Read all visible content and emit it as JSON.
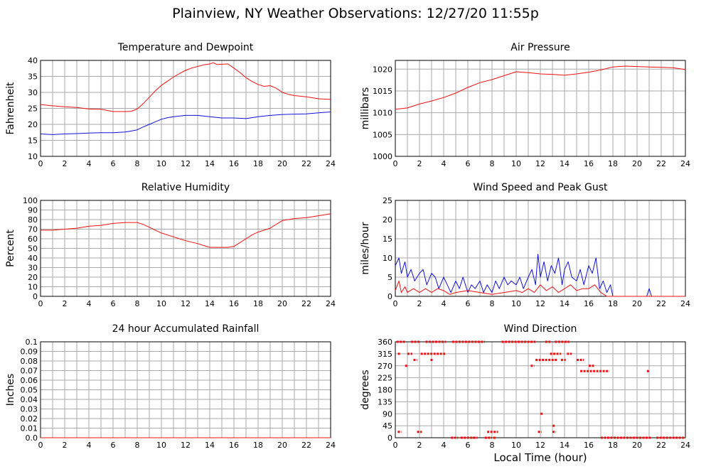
{
  "title": "Plainview, NY Weather Observations: 12/27/20 11:55p",
  "x_axis_label": "Local Time (hour)",
  "colors": {
    "red": "#ee1111",
    "blue": "#1111dd",
    "grid": "#aaaaaa"
  },
  "chart_data": [
    {
      "id": "temp",
      "type": "line",
      "title": "Temperature and Dewpoint",
      "ylabel": "Fahrenheit",
      "xlim": [
        0,
        24
      ],
      "ylim": [
        10,
        40
      ],
      "yticks": [
        "10",
        "15",
        "20",
        "25",
        "30",
        "35",
        "40"
      ],
      "xticks": [
        "0",
        "2",
        "4",
        "6",
        "8",
        "10",
        "12",
        "14",
        "16",
        "18",
        "20",
        "22",
        "24"
      ],
      "grid": true,
      "series": [
        {
          "color": "red",
          "x": [
            0,
            1,
            2,
            3,
            4,
            5,
            6,
            7,
            7.5,
            8,
            8.5,
            9,
            9.5,
            10,
            10.5,
            11,
            11.5,
            12,
            12.5,
            13,
            13.5,
            14,
            14.3,
            14.6,
            15,
            15.5,
            16,
            16.5,
            17,
            17.5,
            18,
            18.5,
            19,
            19.5,
            20,
            20.5,
            21,
            22,
            23,
            24
          ],
          "y": [
            26.2,
            25.8,
            25.5,
            25.3,
            24.8,
            24.7,
            24.0,
            24.0,
            24.1,
            24.8,
            26.5,
            28.5,
            30.5,
            32.2,
            33.5,
            34.8,
            35.9,
            36.9,
            37.6,
            38.1,
            38.6,
            38.9,
            39.3,
            38.7,
            38.8,
            38.9,
            37.6,
            36.2,
            34.6,
            33.4,
            32.5,
            31.9,
            32.1,
            31.3,
            30.0,
            29.4,
            29.0,
            28.6,
            28.0,
            27.8
          ]
        },
        {
          "color": "blue",
          "x": [
            0,
            1,
            2,
            3,
            4,
            5,
            6,
            7,
            7.5,
            8,
            8.5,
            9,
            9.5,
            10,
            10.5,
            11,
            12,
            13,
            14,
            15,
            16,
            17,
            18,
            19,
            20,
            21,
            22,
            23,
            24
          ],
          "y": [
            17.0,
            16.8,
            17.0,
            17.1,
            17.3,
            17.4,
            17.4,
            17.6,
            17.9,
            18.3,
            19.2,
            20.0,
            20.8,
            21.6,
            22.1,
            22.4,
            22.8,
            22.8,
            22.4,
            22.0,
            22.0,
            21.8,
            22.4,
            22.8,
            23.1,
            23.2,
            23.3,
            23.6,
            23.9
          ]
        }
      ]
    },
    {
      "id": "pressure",
      "type": "line",
      "title": "Air Pressure",
      "ylabel": "millibars",
      "xlim": [
        0,
        24
      ],
      "ylim": [
        1000,
        1022
      ],
      "yticks": [
        "1000",
        "1005",
        "1010",
        "1015",
        "1020"
      ],
      "xticks": [
        "0",
        "2",
        "4",
        "6",
        "8",
        "10",
        "12",
        "14",
        "16",
        "18",
        "20",
        "22",
        "24"
      ],
      "grid": true,
      "series": [
        {
          "color": "red",
          "x": [
            0,
            1,
            2,
            3,
            4,
            5,
            6,
            7,
            8,
            9,
            10,
            11,
            12,
            13,
            14,
            15,
            16,
            17,
            18,
            19,
            20,
            21,
            22,
            23,
            24
          ],
          "y": [
            1010.8,
            1011.1,
            1012.0,
            1012.7,
            1013.5,
            1014.5,
            1015.8,
            1016.9,
            1017.6,
            1018.5,
            1019.4,
            1019.2,
            1018.9,
            1018.8,
            1018.6,
            1018.9,
            1019.3,
            1019.8,
            1020.5,
            1020.7,
            1020.6,
            1020.5,
            1020.4,
            1020.3,
            1019.9
          ]
        }
      ]
    },
    {
      "id": "humidity",
      "type": "line",
      "title": "Relative Humidity",
      "ylabel": "Percent",
      "xlim": [
        0,
        24
      ],
      "ylim": [
        0,
        100
      ],
      "yticks": [
        "0",
        "10",
        "20",
        "30",
        "40",
        "50",
        "60",
        "70",
        "80",
        "90",
        "100"
      ],
      "xticks": [
        "0",
        "2",
        "4",
        "6",
        "8",
        "10",
        "12",
        "14",
        "16",
        "18",
        "20",
        "22",
        "24"
      ],
      "grid": true,
      "series": [
        {
          "color": "red",
          "x": [
            0,
            1,
            2,
            3,
            4,
            5,
            6,
            7,
            8,
            8.5,
            9,
            9.5,
            10,
            11,
            12,
            13,
            14,
            15,
            15.5,
            16,
            16.5,
            17,
            17.5,
            18,
            18.5,
            19,
            20,
            21,
            22,
            23,
            24
          ],
          "y": [
            69,
            69,
            70,
            71,
            73,
            74,
            76,
            77,
            77,
            75,
            72,
            69,
            66,
            62,
            58,
            55,
            51,
            51,
            51,
            52,
            56,
            60,
            64,
            67,
            69,
            71,
            79,
            81,
            82,
            84,
            86
          ]
        }
      ]
    },
    {
      "id": "wind",
      "type": "line",
      "title": "Wind Speed and Peak Gust",
      "ylabel": "miles/hour",
      "xlim": [
        0,
        24
      ],
      "ylim": [
        0,
        25
      ],
      "yticks": [
        "0",
        "5",
        "10",
        "15",
        "20",
        "25"
      ],
      "xticks": [
        "0",
        "2",
        "4",
        "6",
        "8",
        "10",
        "12",
        "14",
        "16",
        "18",
        "20",
        "22",
        "24"
      ],
      "grid": true,
      "series": [
        {
          "color": "blue",
          "x": [
            0,
            0.3,
            0.5,
            0.8,
            1,
            1.3,
            1.6,
            2,
            2.3,
            2.6,
            3,
            3.3,
            3.6,
            4,
            4.3,
            4.6,
            5,
            5.3,
            5.6,
            6,
            6.3,
            6.6,
            7,
            7.3,
            7.6,
            8,
            8.3,
            8.6,
            9,
            9.3,
            9.6,
            10,
            10.3,
            10.6,
            11,
            11.3,
            11.6,
            11.8,
            12,
            12.3,
            12.6,
            12.9,
            13.2,
            13.5,
            13.8,
            14,
            14.3,
            14.6,
            15,
            15.3,
            15.6,
            16,
            16.3,
            16.6,
            16.9,
            17.2,
            17.5,
            17.8,
            18,
            20.8,
            21,
            21.2,
            24
          ],
          "y": [
            8,
            10,
            6,
            9,
            5,
            7,
            4,
            6,
            7,
            3,
            6,
            5,
            2,
            5,
            3,
            1,
            4,
            2,
            5,
            1,
            3,
            2,
            4,
            1,
            3,
            1,
            4,
            2,
            5,
            3,
            4,
            3,
            5,
            2,
            5,
            7,
            3,
            11,
            5,
            9,
            4,
            8,
            6,
            10,
            3,
            7,
            9,
            5,
            4,
            7,
            3,
            8,
            6,
            10,
            2,
            4,
            1,
            3,
            0,
            0,
            2,
            0,
            0
          ]
        },
        {
          "color": "red",
          "x": [
            0,
            0.3,
            0.5,
            0.8,
            1,
            1.5,
            2,
            2.5,
            3,
            3.5,
            4,
            4.5,
            5,
            6,
            7,
            8,
            9,
            10,
            10.5,
            11,
            11.5,
            12,
            12.5,
            13,
            13.5,
            14,
            14.5,
            15,
            15.5,
            16,
            16.5,
            17,
            17.5,
            24
          ],
          "y": [
            1.5,
            4,
            1,
            2.5,
            1,
            2,
            1,
            2,
            1,
            2,
            1.5,
            0.5,
            1,
            1.5,
            1,
            0.5,
            1,
            1.5,
            1,
            2,
            1,
            3,
            1.5,
            2.5,
            1,
            2,
            3,
            1.5,
            2,
            2,
            3,
            1,
            0,
            0
          ]
        }
      ]
    },
    {
      "id": "rain",
      "type": "line",
      "title": "24 hour Accumulated Rainfall",
      "ylabel": "Inches",
      "xlim": [
        0,
        24
      ],
      "ylim": [
        0,
        0.1
      ],
      "yticks": [
        "0.0",
        "0.01",
        "0.02",
        "0.03",
        "0.04",
        "0.05",
        "0.06",
        "0.07",
        "0.08",
        "0.09",
        "0.1"
      ],
      "xticks": [
        "0",
        "2",
        "4",
        "6",
        "8",
        "10",
        "12",
        "14",
        "16",
        "18",
        "20",
        "22",
        "24"
      ],
      "grid": true,
      "series": [
        {
          "color": "red",
          "x": [
            0,
            24
          ],
          "y": [
            0,
            0
          ]
        }
      ]
    },
    {
      "id": "direction",
      "type": "scatter",
      "title": "Wind Direction",
      "ylabel": "degrees",
      "xlim": [
        0,
        24
      ],
      "ylim": [
        0,
        360
      ],
      "yticks": [
        "0",
        "45",
        "90",
        "135",
        "180",
        "225",
        "270",
        "315",
        "360"
      ],
      "xticks": [
        "0",
        "2",
        "4",
        "6",
        "8",
        "10",
        "12",
        "14",
        "16",
        "18",
        "20",
        "22",
        "24"
      ],
      "grid": true,
      "series": [
        {
          "color": "red",
          "segments": [
            [
              0.1,
              0.9,
              360
            ],
            [
              1.3,
              2.1,
              360
            ],
            [
              2.5,
              4.2,
              360
            ],
            [
              4.7,
              7.4,
              360
            ],
            [
              8.8,
              11.6,
              360
            ],
            [
              12.4,
              12.9,
              360
            ],
            [
              13.2,
              14.4,
              360
            ],
            [
              2.1,
              4.2,
              315
            ],
            [
              1.0,
              1.4,
              315
            ],
            [
              12.8,
              13.7,
              315
            ],
            [
              14.2,
              14.6,
              315
            ],
            [
              1.5,
              1.8,
              292
            ],
            [
              11.6,
              13.4,
              292
            ],
            [
              13.7,
              14.1,
              292
            ],
            [
              15.0,
              15.6,
              292
            ],
            [
              15.3,
              17.7,
              250
            ],
            [
              16.0,
              16.5,
              270
            ],
            [
              11.2,
              11.5,
              270
            ],
            [
              7.6,
              8.5,
              22
            ],
            [
              11.8,
              12.1,
              22
            ],
            [
              13.0,
              13.3,
              22
            ],
            [
              0.2,
              0.5,
              22
            ],
            [
              1.8,
              2.2,
              22
            ],
            [
              4.6,
              5.2,
              0
            ],
            [
              5.4,
              6.8,
              0
            ],
            [
              7.4,
              8.0,
              0
            ],
            [
              17.0,
              21.2,
              0
            ],
            [
              21.6,
              24.0,
              0
            ]
          ],
          "points": [
            [
              0.3,
              315
            ],
            [
              3.0,
              292
            ],
            [
              0.9,
              270
            ],
            [
              13.1,
              45
            ],
            [
              12.1,
              90
            ],
            [
              20.9,
              250
            ],
            [
              6.5,
              0
            ],
            [
              8.2,
              0
            ]
          ]
        }
      ]
    }
  ]
}
